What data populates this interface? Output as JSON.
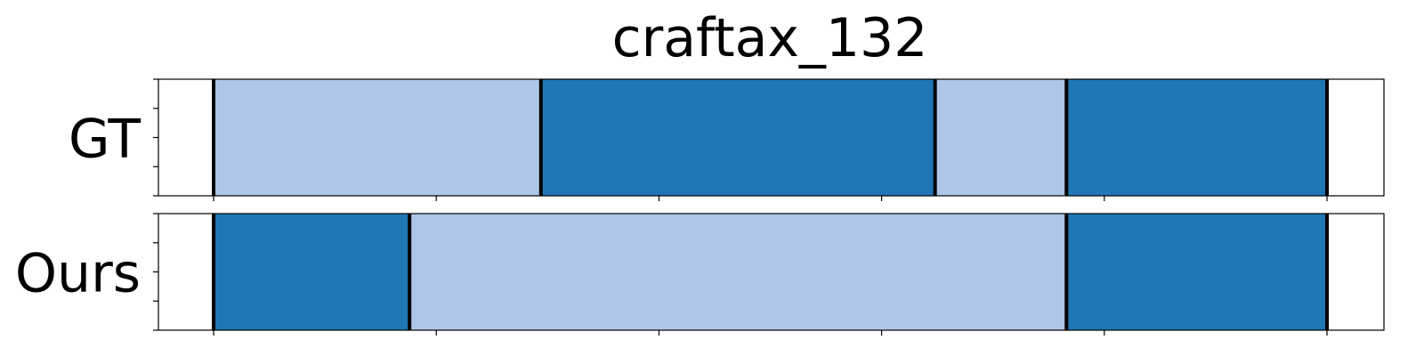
{
  "chart_data": {
    "type": "segmentation-timeline",
    "title": "craftax_132",
    "xlim": [
      0,
      250
    ],
    "colors": {
      "light": "#aec7e8",
      "dark": "#1f77b4",
      "boundary": "#000000"
    },
    "x_ticks": [
      0,
      50,
      100,
      150,
      200,
      250
    ],
    "tick_labels_shown": false,
    "rows": [
      {
        "label": "GT",
        "segments": [
          {
            "start": 0,
            "end": 73.5,
            "color": "light"
          },
          {
            "start": 73.5,
            "end": 162,
            "color": "dark"
          },
          {
            "start": 162,
            "end": 191.5,
            "color": "light"
          },
          {
            "start": 191.5,
            "end": 250,
            "color": "dark"
          }
        ],
        "boundaries": [
          0,
          73.5,
          162,
          191.5,
          250
        ]
      },
      {
        "label": "Ours",
        "segments": [
          {
            "start": 0,
            "end": 44,
            "color": "dark"
          },
          {
            "start": 44,
            "end": 191.5,
            "color": "light"
          },
          {
            "start": 191.5,
            "end": 250,
            "color": "dark"
          }
        ],
        "boundaries": [
          0,
          44,
          191.5,
          250
        ]
      }
    ]
  }
}
